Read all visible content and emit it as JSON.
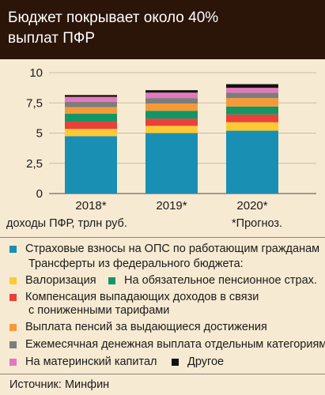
{
  "header": {
    "title_line1": "Бюджет покрывает около 40%",
    "title_line2": "выплат ПФР"
  },
  "chart_data": {
    "type": "bar",
    "stacked": true,
    "categories": [
      "2018*",
      "2019*",
      "2020*"
    ],
    "ylim": [
      0,
      10
    ],
    "yticks": [
      "0",
      "2,5",
      "5",
      "7,5",
      "10"
    ],
    "ylabel": "доходы ПФР, трлн руб.",
    "note": "*Прогноз.",
    "series": [
      {
        "name": "Страховые взносы на ОПС по работающим гражданам",
        "color": "#1a8fb4",
        "values": [
          4.75,
          5.0,
          5.2
        ]
      },
      {
        "name": "Валоризация",
        "color": "#ffc933",
        "values": [
          0.6,
          0.6,
          0.7
        ]
      },
      {
        "name": "Компенсация выпадающих доходов  в связи с пониженными тарифами",
        "color": "#e8413a",
        "values": [
          0.6,
          0.6,
          0.65
        ]
      },
      {
        "name": "На обязательное пенсионное страх.",
        "color": "#129666",
        "values": [
          0.65,
          0.65,
          0.65
        ]
      },
      {
        "name": "Выплата пенсий за выдающиеся достижения",
        "color": "#f59a38",
        "values": [
          0.55,
          0.6,
          0.7
        ]
      },
      {
        "name": "Ежемесячная денежная выплата отдельным категориям",
        "color": "#7d7d7d",
        "values": [
          0.45,
          0.45,
          0.45
        ]
      },
      {
        "name": "На материнский капитал",
        "color": "#e677bd",
        "values": [
          0.4,
          0.45,
          0.4
        ]
      },
      {
        "name": "Другое",
        "color": "#111111",
        "values": [
          0.15,
          0.2,
          0.3
        ]
      }
    ]
  },
  "legend": {
    "transfers_heading": "Трансферты из федерального бюджета:",
    "items": [
      {
        "label": "Страховые взносы на ОПС по работающим гражданам",
        "color": "#1a8fb4"
      },
      {
        "label": "Валоризация",
        "color": "#ffc933"
      },
      {
        "label": "На обязательное пенсионное страх.",
        "color": "#129666"
      },
      {
        "label": "Компенсация выпадающих доходов  в связи",
        "label2": "с пониженными тарифами",
        "color": "#e8413a"
      },
      {
        "label": "Выплата пенсий за выдающиеся достижения",
        "color": "#f59a38"
      },
      {
        "label": "Ежемесячная денежная выплата отдельным категориям",
        "color": "#7d7d7d"
      },
      {
        "label": "На материнский капитал",
        "color": "#e677bd"
      },
      {
        "label": "Другое",
        "color": "#111111"
      }
    ]
  },
  "source": "Источник: Минфин"
}
